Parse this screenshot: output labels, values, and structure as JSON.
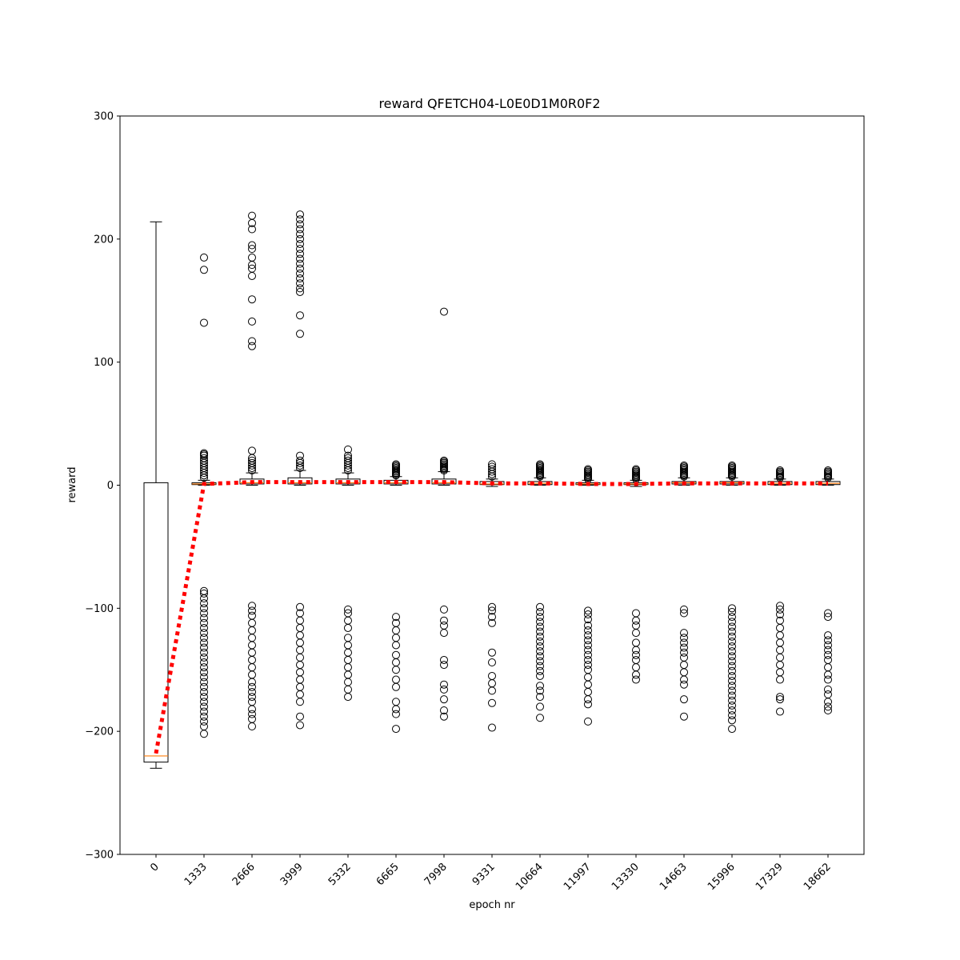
{
  "chart_data": {
    "type": "box",
    "title": "reward QFETCH04-L0E0D1M0R0F2",
    "xlabel": "epoch nr",
    "ylabel": "reward",
    "ylim": [
      -300,
      300
    ],
    "yticks": [
      -300,
      -200,
      -100,
      0,
      100,
      200,
      300
    ],
    "grid": false,
    "colors": {
      "box": "#000000",
      "median": "#ff7f0e",
      "mean_line": "#ff0000",
      "outlier": "#000000"
    },
    "categories": [
      "0",
      "1333",
      "2666",
      "3999",
      "5332",
      "6665",
      "7998",
      "9331",
      "10664",
      "11997",
      "13330",
      "14663",
      "15996",
      "17329",
      "18662"
    ],
    "boxes": [
      {
        "whislo": -230,
        "q1": -225,
        "med": -220,
        "q3": 2,
        "whishi": 214,
        "mean": -218,
        "fliers": []
      },
      {
        "whislo": 0,
        "q1": 0.5,
        "med": 1,
        "q3": 2,
        "whishi": 4,
        "mean": 1,
        "fliers": [
          185,
          175,
          132,
          26,
          25,
          24,
          22,
          20,
          18,
          16,
          14,
          12,
          10,
          8,
          6,
          -86,
          -88,
          -92,
          -96,
          -100,
          -104,
          -108,
          -112,
          -116,
          -120,
          -124,
          -128,
          -132,
          -136,
          -140,
          -144,
          -148,
          -152,
          -156,
          -160,
          -164,
          -168,
          -172,
          -176,
          -180,
          -184,
          -188,
          -192,
          -196,
          -202
        ]
      },
      {
        "whislo": 0,
        "q1": 1,
        "med": 2,
        "q3": 5,
        "whishi": 10,
        "mean": 2.5,
        "fliers": [
          219,
          213,
          208,
          195,
          192,
          185,
          179,
          176,
          170,
          151,
          133,
          117,
          113,
          28,
          22,
          20,
          18,
          16,
          14,
          12,
          -98,
          -102,
          -106,
          -112,
          -118,
          -124,
          -130,
          -136,
          -142,
          -148,
          -154,
          -160,
          -164,
          -168,
          -172,
          -176,
          -182,
          -186,
          -190,
          -196
        ]
      },
      {
        "whislo": 0,
        "q1": 1,
        "med": 2,
        "q3": 6,
        "whishi": 12,
        "mean": 2.5,
        "fliers": [
          220,
          216,
          212,
          208,
          204,
          200,
          196,
          192,
          188,
          184,
          180,
          176,
          172,
          168,
          164,
          160,
          157,
          138,
          123,
          24,
          20,
          18,
          16,
          14,
          -99,
          -104,
          -110,
          -116,
          -122,
          -128,
          -134,
          -140,
          -146,
          -152,
          -158,
          -164,
          -170,
          -176,
          -188,
          -195
        ]
      },
      {
        "whislo": 0,
        "q1": 1,
        "med": 2,
        "q3": 5,
        "whishi": 10,
        "mean": 2.5,
        "fliers": [
          29,
          24,
          22,
          20,
          18,
          16,
          14,
          12,
          -101,
          -104,
          -110,
          -116,
          -124,
          -130,
          -136,
          -142,
          -148,
          -154,
          -160,
          -166,
          -172
        ]
      },
      {
        "whislo": 0,
        "q1": 1,
        "med": 2,
        "q3": 4,
        "whishi": 7,
        "mean": 2.5,
        "fliers": [
          17,
          16,
          15,
          14,
          13,
          12,
          11,
          10,
          9,
          8,
          -107,
          -112,
          -118,
          -124,
          -130,
          -138,
          -144,
          -150,
          -158,
          -164,
          -176,
          -182,
          -186,
          -198
        ]
      },
      {
        "whislo": 0,
        "q1": 1,
        "med": 2,
        "q3": 5,
        "whishi": 11,
        "mean": 2.5,
        "fliers": [
          141,
          20,
          19,
          18,
          17,
          16,
          15,
          14,
          13,
          12,
          -101,
          -110,
          -114,
          -120,
          -142,
          -146,
          -162,
          -166,
          -174,
          -183,
          -188
        ]
      },
      {
        "whislo": -1,
        "q1": 0.5,
        "med": 1,
        "q3": 3,
        "whishi": 5,
        "mean": 1.5,
        "fliers": [
          17,
          15,
          13,
          11,
          9,
          7,
          -99,
          -102,
          -107,
          -112,
          -136,
          -144,
          -155,
          -161,
          -167,
          -177,
          -197
        ]
      },
      {
        "whislo": 0,
        "q1": 0.5,
        "med": 1.5,
        "q3": 3,
        "whishi": 6,
        "mean": 1.5,
        "fliers": [
          17,
          16,
          15,
          14,
          13,
          12,
          11,
          10,
          9,
          8,
          7,
          -99,
          -103,
          -107,
          -111,
          -115,
          -119,
          -123,
          -127,
          -131,
          -135,
          -139,
          -143,
          -147,
          -151,
          -155,
          -163,
          -167,
          -172,
          -180,
          -189
        ]
      },
      {
        "whislo": 0,
        "q1": 0.5,
        "med": 1,
        "q3": 2,
        "whishi": 4,
        "mean": 1,
        "fliers": [
          13,
          12,
          11,
          10,
          9,
          8,
          7,
          6,
          5,
          -102,
          -105,
          -109,
          -114,
          -118,
          -122,
          -126,
          -130,
          -134,
          -138,
          -142,
          -146,
          -150,
          -156,
          -162,
          -168,
          -174,
          -178,
          -192
        ]
      },
      {
        "whislo": -1,
        "q1": 0.5,
        "med": 1,
        "q3": 2,
        "whishi": 4,
        "mean": 1,
        "fliers": [
          13,
          12,
          11,
          10,
          9,
          8,
          7,
          6,
          5,
          -104,
          -110,
          -114,
          -120,
          -128,
          -134,
          -138,
          -142,
          -148,
          -154,
          -158
        ]
      },
      {
        "whislo": 0,
        "q1": 1,
        "med": 2,
        "q3": 3,
        "whishi": 6,
        "mean": 1.5,
        "fliers": [
          16,
          15,
          14,
          13,
          12,
          11,
          10,
          9,
          8,
          7,
          -101,
          -104,
          -120,
          -124,
          -128,
          -132,
          -136,
          -140,
          -146,
          -152,
          -158,
          -162,
          -174,
          -188
        ]
      },
      {
        "whislo": 0,
        "q1": 1,
        "med": 2,
        "q3": 3,
        "whishi": 6,
        "mean": 1.5,
        "fliers": [
          16,
          15,
          14,
          13,
          12,
          11,
          10,
          9,
          8,
          7,
          -100,
          -103,
          -107,
          -111,
          -115,
          -119,
          -123,
          -127,
          -131,
          -135,
          -139,
          -143,
          -147,
          -151,
          -155,
          -159,
          -163,
          -167,
          -171,
          -175,
          -179,
          -183,
          -187,
          -191,
          -198
        ]
      },
      {
        "whislo": 0,
        "q1": 0.5,
        "med": 1.5,
        "q3": 3,
        "whishi": 5,
        "mean": 1.5,
        "fliers": [
          12,
          11,
          10,
          9,
          8,
          7,
          6,
          -98,
          -101,
          -105,
          -110,
          -116,
          -122,
          -128,
          -134,
          -140,
          -146,
          -152,
          -158,
          -172,
          -174,
          -184
        ]
      },
      {
        "whislo": 0,
        "q1": 0.5,
        "med": 1.5,
        "q3": 3,
        "whishi": 5,
        "mean": 1.5,
        "fliers": [
          12,
          11,
          10,
          9,
          8,
          7,
          6,
          -104,
          -107,
          -122,
          -126,
          -130,
          -134,
          -138,
          -142,
          -148,
          -154,
          -158,
          -166,
          -170,
          -176,
          -180,
          -183
        ]
      }
    ]
  }
}
